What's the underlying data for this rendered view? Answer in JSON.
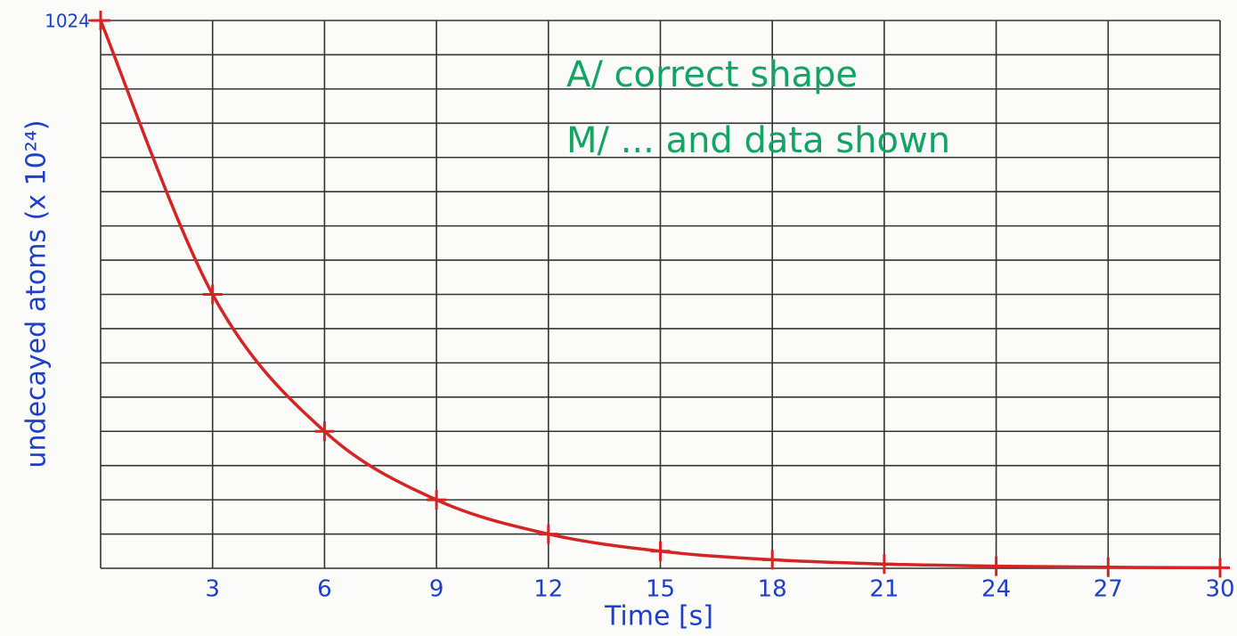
{
  "chart_data": {
    "type": "line",
    "x_label": "Time [s]",
    "y_label": "undecayed atoms (x 10²⁴)",
    "annotations": [
      "A/ correct shape",
      "M/ ... and data shown"
    ],
    "x": [
      0,
      3,
      6,
      9,
      12,
      15,
      18,
      21,
      24,
      27,
      30
    ],
    "series": [
      {
        "color": "#d42424",
        "values": [
          1024,
          512,
          256,
          128,
          64,
          32,
          16,
          8,
          4,
          2,
          1
        ]
      }
    ],
    "xlim": [
      0,
      30
    ],
    "xticks": [
      3,
      6,
      9,
      12,
      15,
      18,
      21,
      24,
      27,
      30
    ],
    "ylim": [
      0,
      1024
    ],
    "yticks": [
      1024
    ],
    "grid": true
  }
}
